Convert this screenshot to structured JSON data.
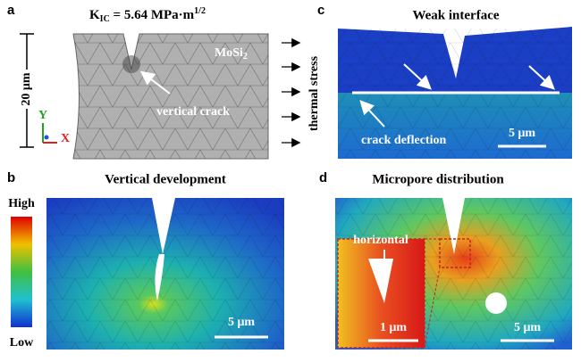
{
  "panels": {
    "a": {
      "label": "a",
      "kic": {
        "symbol": "K",
        "subscript": "IC",
        "equation": " = 5.64 MPa·m",
        "superscript": "1/2"
      },
      "scale": "20 μm",
      "axis_y": "Y",
      "axis_x": "X",
      "material": {
        "name": "MoSi",
        "subscript": "2"
      },
      "annotation": "vertical crack",
      "side_label": "thermal stress"
    },
    "b": {
      "label": "b",
      "title": "Vertical development",
      "colorbar_high": "High",
      "colorbar_low": "Low",
      "scale": "5 μm"
    },
    "c": {
      "label": "c",
      "title": "Weak interface",
      "annotation": "crack deflection",
      "scale": "5 μm"
    },
    "d": {
      "label": "d",
      "title": "Micropore distribution",
      "annotation": "horizontal",
      "inset_scale": "1 μm",
      "scale": "5 μm"
    }
  }
}
